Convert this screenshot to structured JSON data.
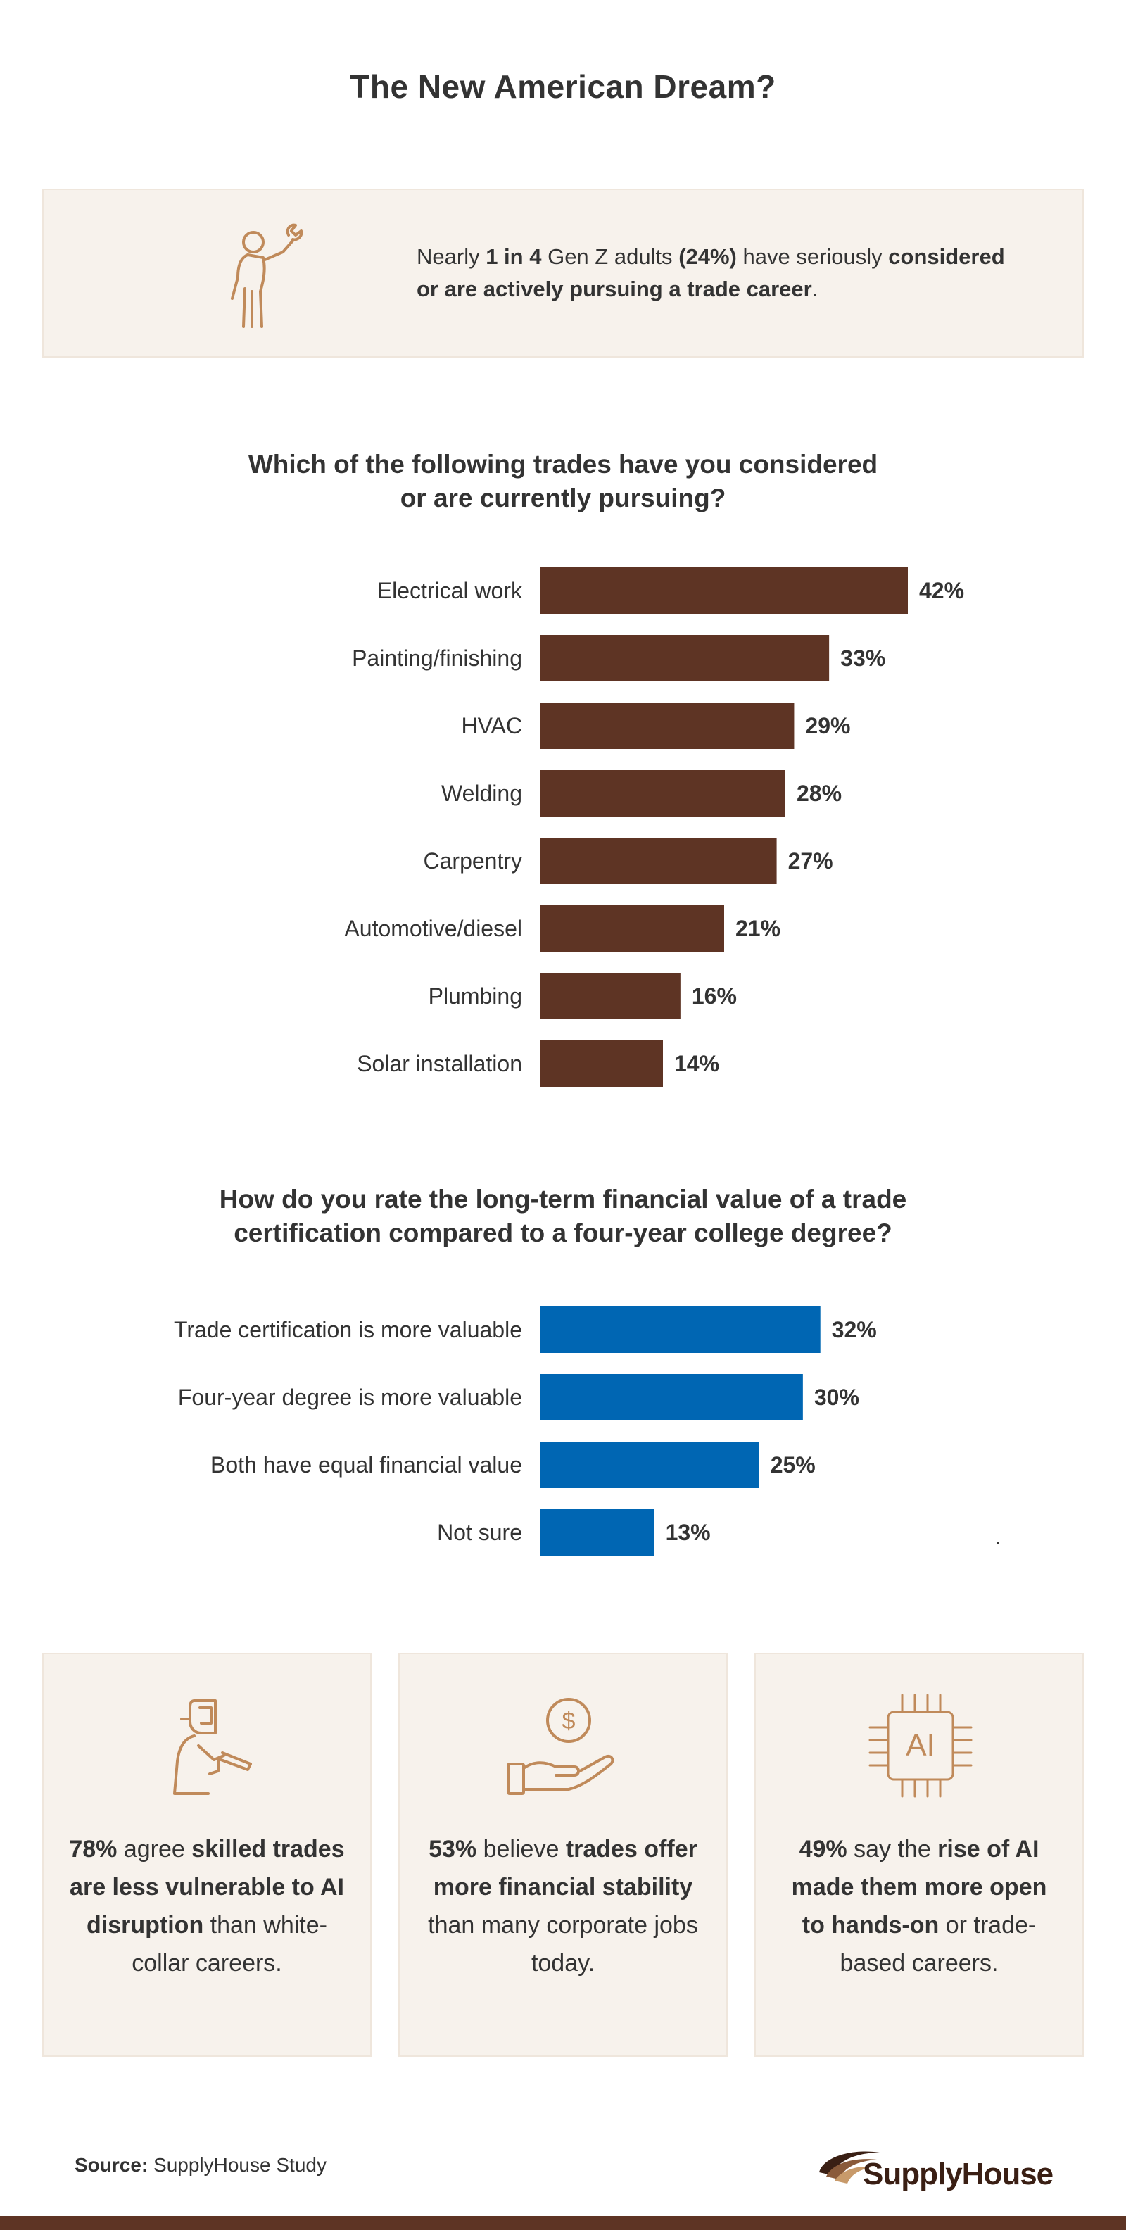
{
  "title": "The New American Dream?",
  "stat": {
    "p1": "Nearly ",
    "b1": "1 in 4",
    "p2": " Gen Z adults ",
    "b2": "(24%)",
    "p3": " have seriously ",
    "b3": "considered or are actively pursuing a trade career",
    "p4": ".",
    "icon": "worker-with-wrench-icon"
  },
  "colors": {
    "trade_bar": "#5e3424",
    "value_bar": "#0066b3",
    "panel": "#f7f2ec",
    "icon_stroke": "#c08a5a"
  },
  "chart_data": [
    {
      "type": "bar",
      "orientation": "horizontal",
      "title_line1": "Which of the following trades have you considered",
      "title_line2": "or are currently pursuing?",
      "categories": [
        "Electrical work",
        "Painting/finishing",
        "HVAC",
        "Welding",
        "Carpentry",
        "Automotive/diesel",
        "Plumbing",
        "Solar installation"
      ],
      "values": [
        42,
        33,
        29,
        28,
        27,
        21,
        16,
        14
      ],
      "value_labels": [
        "42%",
        "33%",
        "29%",
        "28%",
        "27%",
        "21%",
        "16%",
        "14%"
      ],
      "unit": "%",
      "xlim": [
        0,
        42
      ]
    },
    {
      "type": "bar",
      "orientation": "horizontal",
      "title_line1": "How do you rate the long-term financial value of a trade",
      "title_line2": "certification compared to a four-year college degree?",
      "categories": [
        "Trade certification is more valuable",
        "Four-year degree is more valuable",
        "Both have equal financial value",
        "Not sure"
      ],
      "values": [
        32,
        30,
        25,
        13
      ],
      "value_labels": [
        "32%",
        "30%",
        "25%",
        "13%"
      ],
      "unit": "%",
      "xlim": [
        0,
        42
      ]
    }
  ],
  "cards": [
    {
      "icon": "welder-icon",
      "b1": "78%",
      "p1": " agree ",
      "b2": "skilled trades are less vulnerable to AI disruption",
      "p2": " than white-collar careers."
    },
    {
      "icon": "hand-holding-dollar-icon",
      "b1": "53%",
      "p1": " believe ",
      "b2": "trades offer more financial stability",
      "p2": " than many corporate jobs today."
    },
    {
      "icon": "ai-chip-icon",
      "icon_text": "AI",
      "b1": "49%",
      "p1": " say the ",
      "b2": "rise of AI made them more open to hands-on",
      "p2": " or trade-based careers."
    }
  ],
  "source": {
    "label": "Source:",
    "text": " SupplyHouse Study"
  },
  "logo": {
    "text": "SupplyHouse"
  }
}
